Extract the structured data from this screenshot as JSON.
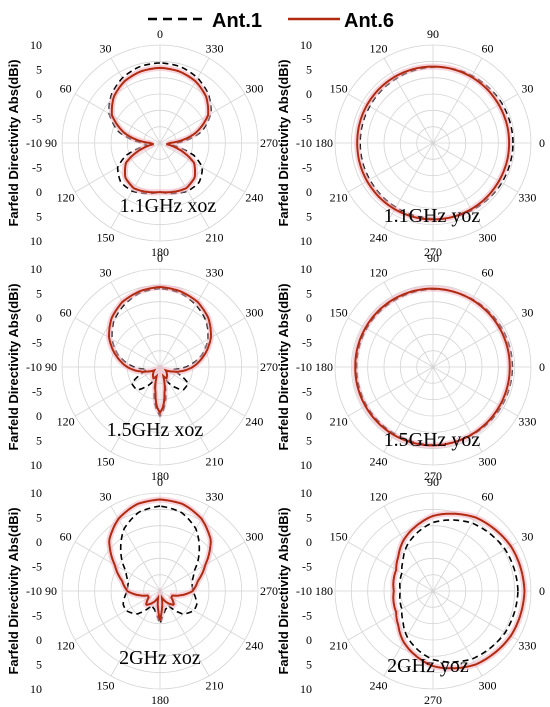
{
  "legend": {
    "items": [
      {
        "label": "Ant.1",
        "color": "#000000",
        "style": "dashed"
      },
      {
        "label": "Ant.6",
        "color": "#b22a10",
        "style": "solid"
      }
    ]
  },
  "colors": {
    "ant1": "#000000",
    "ant6": "#b22a10",
    "halo": "#f2b8c4",
    "grid": "#d4d4d4"
  },
  "chart_data": [
    {
      "type": "polar",
      "title": "1.1GHz xoz",
      "ylabel": "Farfeld Directivity Abs(dBi)",
      "angle_labels": [
        "0",
        "330",
        "300",
        "270",
        "240",
        "210",
        "180",
        "150",
        "120",
        "90",
        "60",
        "30"
      ],
      "radial_ticks": [
        "10",
        "5",
        "0",
        "-5",
        "-10",
        "-5",
        "0",
        "5",
        "10"
      ],
      "rlim": [
        -20,
        10
      ],
      "series": [
        {
          "name": "Ant.1",
          "angles": [
            0,
            15,
            30,
            45,
            60,
            75,
            90,
            100,
            110,
            120,
            135,
            150,
            165,
            180,
            195,
            210,
            225,
            240,
            250,
            260,
            270,
            285,
            300,
            315,
            330,
            345
          ],
          "values": [
            4.5,
            4.2,
            3,
            1,
            -2,
            -7,
            -15,
            -16,
            -9,
            -5,
            -3,
            -3,
            -4,
            -5,
            -4,
            -3,
            -3,
            -5,
            -9,
            -16,
            -15,
            -7,
            -2,
            1,
            3,
            4.2
          ]
        },
        {
          "name": "Ant.6",
          "angles": [
            0,
            15,
            30,
            45,
            60,
            75,
            90,
            100,
            110,
            120,
            135,
            150,
            165,
            180,
            195,
            210,
            225,
            240,
            250,
            260,
            270,
            285,
            300,
            315,
            330,
            345
          ],
          "values": [
            3,
            2.7,
            1.8,
            0,
            -3,
            -9,
            -17,
            -18,
            -13,
            -8,
            -5,
            -4,
            -4.5,
            -5,
            -4.5,
            -4,
            -5,
            -8,
            -13,
            -18,
            -17,
            -9,
            -3,
            0,
            1.8,
            2.7
          ]
        }
      ]
    },
    {
      "type": "polar",
      "title": "1.1GHz yoz",
      "ylabel": "Farfeld Directivity Abs(dBi)",
      "angle_labels": [
        "90",
        "60",
        "30",
        "0",
        "330",
        "300",
        "270",
        "240",
        "210",
        "180",
        "150",
        "120"
      ],
      "radial_ticks": [
        "10",
        "5",
        "0",
        "-5",
        "-10",
        "-5",
        "0",
        "5",
        "10"
      ],
      "rlim": [
        -20,
        10
      ],
      "series": [
        {
          "name": "Ant.1",
          "angles": [
            0,
            30,
            60,
            90,
            120,
            150,
            180,
            210,
            240,
            270,
            300,
            330
          ],
          "values": [
            4.5,
            4.3,
            3.8,
            3.2,
            2.7,
            2.4,
            2.3,
            2.4,
            2.7,
            3.2,
            3.8,
            4.3
          ]
        },
        {
          "name": "Ant.6",
          "angles": [
            0,
            30,
            60,
            90,
            120,
            150,
            180,
            210,
            240,
            270,
            300,
            330
          ],
          "values": [
            3.3,
            3.3,
            3.4,
            3.4,
            3.4,
            3.3,
            3.2,
            3.3,
            3.4,
            3.4,
            3.4,
            3.3
          ]
        }
      ]
    },
    {
      "type": "polar",
      "title": "1.5GHz xoz",
      "ylabel": "Farfeld Directivity Abs(dBi)",
      "angle_labels": [
        "0",
        "330",
        "300",
        "270",
        "240",
        "210",
        "180",
        "150",
        "120",
        "90",
        "60",
        "30"
      ],
      "radial_ticks": [
        "10",
        "5",
        "0",
        "-5",
        "-10",
        "-5",
        "0",
        "5",
        "10"
      ],
      "rlim": [
        -20,
        10
      ],
      "series": [
        {
          "name": "Ant.1",
          "angles": [
            0,
            15,
            30,
            45,
            60,
            75,
            90,
            100,
            110,
            120,
            135,
            150,
            160,
            170,
            175,
            180,
            185,
            190,
            200,
            210,
            225,
            240,
            250,
            260,
            270,
            285,
            300,
            315,
            330,
            345
          ],
          "values": [
            4,
            3.5,
            2,
            0,
            -3,
            -7,
            -12,
            -16,
            -14,
            -10,
            -10,
            -14,
            -17,
            -10,
            -7,
            -5,
            -7,
            -10,
            -17,
            -14,
            -10,
            -10,
            -14,
            -16,
            -12,
            -7,
            -3,
            0,
            2,
            3.5
          ]
        },
        {
          "name": "Ant.6",
          "angles": [
            0,
            15,
            30,
            45,
            60,
            75,
            90,
            100,
            110,
            120,
            135,
            150,
            160,
            170,
            175,
            180,
            185,
            190,
            200,
            210,
            225,
            240,
            250,
            260,
            270,
            285,
            300,
            315,
            330,
            345
          ],
          "values": [
            4.5,
            4,
            3,
            1,
            -2,
            -6,
            -10,
            -13,
            -16,
            -18,
            -17,
            -16,
            -17,
            -12,
            -8,
            -6,
            -8,
            -12,
            -17,
            -16,
            -17,
            -18,
            -16,
            -13,
            -10,
            -6,
            -2,
            1,
            3,
            4
          ]
        }
      ]
    },
    {
      "type": "polar",
      "title": "1.5GHz yoz",
      "ylabel": "Farfeld Directivity Abs(dBi)",
      "angle_labels": [
        "90",
        "60",
        "30",
        "0",
        "330",
        "300",
        "270",
        "240",
        "210",
        "180",
        "150",
        "120"
      ],
      "radial_ticks": [
        "10",
        "5",
        "0",
        "-5",
        "-10",
        "-5",
        "0",
        "5",
        "10"
      ],
      "rlim": [
        -20,
        10
      ],
      "series": [
        {
          "name": "Ant.1",
          "angles": [
            0,
            30,
            60,
            90,
            120,
            150,
            180,
            210,
            240,
            270,
            300,
            330
          ],
          "values": [
            4.3,
            4.2,
            4,
            3.8,
            3.6,
            3.5,
            3.4,
            3.5,
            3.6,
            3.8,
            4,
            4.2
          ]
        },
        {
          "name": "Ant.6",
          "angles": [
            0,
            30,
            60,
            90,
            120,
            150,
            180,
            210,
            240,
            270,
            300,
            330
          ],
          "values": [
            3.5,
            3.6,
            3.8,
            4,
            4,
            3.9,
            3.8,
            3.9,
            4,
            4,
            3.8,
            3.6
          ]
        }
      ]
    },
    {
      "type": "polar",
      "title": "2GHz xoz",
      "ylabel": "Farfeld Directivity Abs(dBi)",
      "angle_labels": [
        "0",
        "330",
        "300",
        "270",
        "240",
        "210",
        "180",
        "150",
        "120",
        "90",
        "60",
        "30"
      ],
      "radial_ticks": [
        "10",
        "5",
        "0",
        "-5",
        "-10",
        "-5",
        "0",
        "5",
        "10"
      ],
      "rlim": [
        -20,
        10
      ],
      "series": [
        {
          "name": "Ant.1",
          "angles": [
            0,
            15,
            30,
            45,
            60,
            75,
            90,
            100,
            110,
            120,
            135,
            150,
            165,
            175,
            180,
            185,
            195,
            210,
            225,
            240,
            250,
            260,
            270,
            285,
            300,
            315,
            330,
            345
          ],
          "values": [
            6,
            5,
            2,
            -3,
            -8,
            -10,
            -10,
            -9,
            -8,
            -8,
            -10,
            -15,
            -14,
            -12,
            -10,
            -12,
            -14,
            -15,
            -10,
            -8,
            -8,
            -9,
            -10,
            -10,
            -8,
            -3,
            2,
            5
          ]
        },
        {
          "name": "Ant.6",
          "angles": [
            0,
            15,
            30,
            45,
            60,
            75,
            90,
            100,
            110,
            120,
            135,
            150,
            165,
            175,
            180,
            185,
            195,
            210,
            225,
            240,
            250,
            260,
            270,
            285,
            300,
            315,
            330,
            345
          ],
          "values": [
            8,
            7.5,
            5.5,
            2,
            -4,
            -8,
            -10,
            -13,
            -16,
            -16,
            -14,
            -16,
            -18,
            -14,
            -11,
            -14,
            -18,
            -16,
            -14,
            -16,
            -16,
            -13,
            -10,
            -8,
            -4,
            2,
            5.5,
            7.5
          ]
        }
      ]
    },
    {
      "type": "polar",
      "title": "2GHz yoz",
      "ylabel": "Farfeld Directivity Abs(dBi)",
      "angle_labels": [
        "90",
        "60",
        "30",
        "0",
        "330",
        "300",
        "270",
        "240",
        "210",
        "180",
        "150",
        "120"
      ],
      "radial_ticks": [
        "10",
        "5",
        "0",
        "-5",
        "-10",
        "-5",
        "0",
        "5",
        "10"
      ],
      "rlim": [
        -20,
        10
      ],
      "series": [
        {
          "name": "Ant.1",
          "angles": [
            0,
            30,
            60,
            90,
            120,
            135,
            150,
            165,
            180,
            195,
            210,
            225,
            240,
            270,
            300,
            330
          ],
          "values": [
            6,
            5.5,
            4,
            1,
            -4,
            -7,
            -9,
            -9.5,
            -10,
            -9.5,
            -9,
            -7,
            -4,
            1,
            4,
            5.5
          ]
        },
        {
          "name": "Ant.6",
          "angles": [
            0,
            30,
            60,
            90,
            120,
            135,
            150,
            165,
            180,
            195,
            210,
            225,
            240,
            270,
            300,
            330
          ],
          "values": [
            8,
            7.5,
            6,
            3,
            -2,
            -5,
            -7,
            -7.5,
            -8,
            -7.5,
            -7,
            -5,
            -2,
            3,
            6,
            7.5
          ]
        }
      ]
    }
  ]
}
